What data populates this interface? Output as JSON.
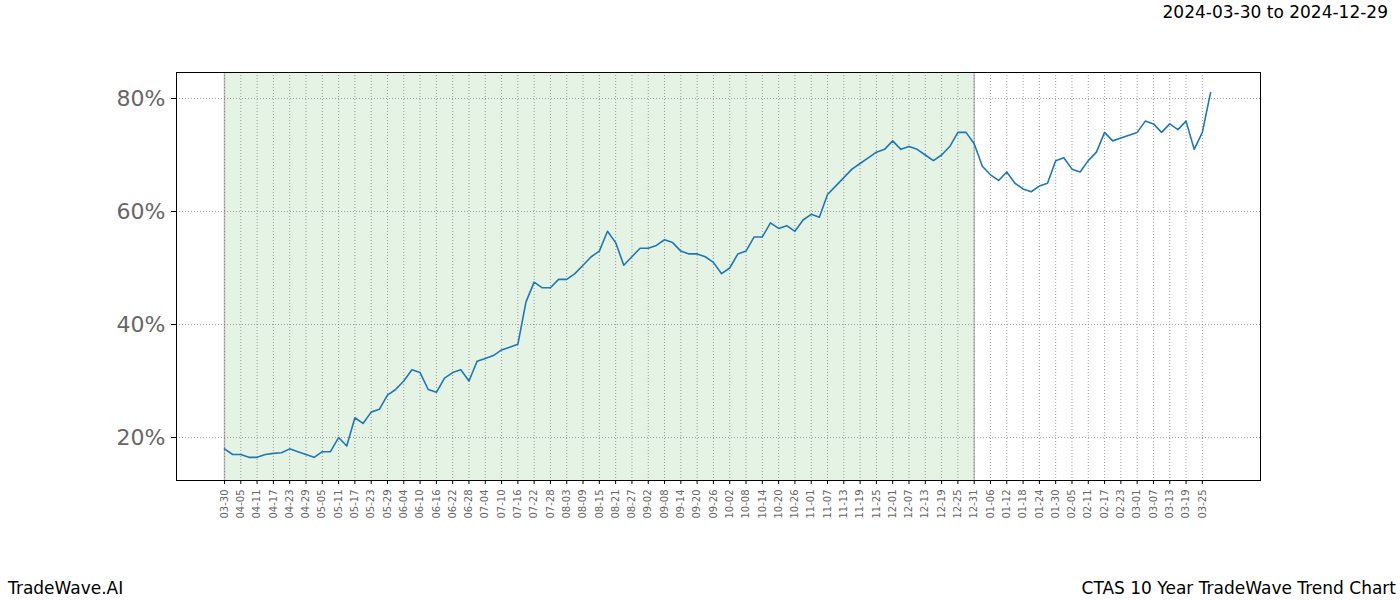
{
  "chart_data": {
    "type": "line",
    "subtitle": "2024-03-30 to 2024-12-29",
    "caption_left": "TradeWave.AI",
    "caption_right": "CTAS 10 Year TradeWave Trend Chart",
    "categories": [
      "03-30",
      null,
      "04-05",
      null,
      "04-11",
      null,
      "04-17",
      null,
      "04-23",
      null,
      "04-29",
      null,
      "05-05",
      null,
      "05-11",
      null,
      "05-17",
      null,
      "05-23",
      null,
      "05-29",
      null,
      "06-04",
      null,
      "06-10",
      null,
      "06-16",
      null,
      "06-22",
      null,
      "06-28",
      null,
      "07-04",
      null,
      "07-10",
      null,
      "07-16",
      null,
      "07-22",
      null,
      "07-28",
      null,
      "08-03",
      null,
      "08-09",
      null,
      "08-15",
      null,
      "08-21",
      null,
      "08-27",
      null,
      "09-02",
      null,
      "09-08",
      null,
      "09-14",
      null,
      "09-20",
      null,
      "09-26",
      null,
      "10-02",
      null,
      "10-08",
      null,
      "10-14",
      null,
      "10-20",
      null,
      "10-26",
      null,
      "11-01",
      null,
      "11-07",
      null,
      "11-13",
      null,
      "11-19",
      null,
      "11-25",
      null,
      "12-01",
      null,
      "12-07",
      null,
      "12-13",
      null,
      "12-19",
      null,
      "12-25",
      null,
      "12-31",
      null,
      "01-06",
      null,
      "01-12",
      null,
      "01-18",
      null,
      "01-24",
      null,
      "01-30",
      null,
      "02-05",
      null,
      "02-11",
      null,
      "02-17",
      null,
      "02-23",
      null,
      "03-01",
      null,
      "03-07",
      null,
      "03-13",
      null,
      "03-19",
      null,
      "03-25",
      null
    ],
    "values": [
      18,
      17,
      17,
      16.5,
      16.5,
      17,
      17.2,
      17.3,
      18,
      17.5,
      17,
      16.5,
      17.5,
      17.5,
      20,
      18.5,
      23.5,
      22.5,
      24.5,
      25,
      27.5,
      28.5,
      30,
      32,
      31.5,
      28.5,
      28,
      30.5,
      31.5,
      32,
      30,
      33.5,
      34,
      34.5,
      35.5,
      36,
      36.5,
      44,
      47.5,
      46.5,
      46.5,
      48,
      48,
      49,
      50.5,
      52,
      53,
      56.5,
      54.5,
      50.5,
      52,
      53.5,
      53.5,
      54,
      55,
      54.5,
      53,
      52.5,
      52.5,
      52,
      51,
      49,
      50,
      52.5,
      53,
      55.5,
      55.5,
      58,
      57,
      57.5,
      56.5,
      58.5,
      59.5,
      59,
      63,
      64.5,
      66,
      67.5,
      68.5,
      69.5,
      70.5,
      71,
      72.5,
      71,
      71.5,
      71,
      70,
      69,
      70,
      71.5,
      74,
      74,
      72,
      68,
      66.5,
      65.5,
      67,
      65,
      64,
      63.5,
      64.5,
      65,
      69,
      69.5,
      67.5,
      67,
      69,
      70.5,
      74,
      72.5,
      73,
      73.5,
      74,
      76,
      75.5,
      74,
      75.5,
      74.5,
      76,
      71,
      74,
      81
    ],
    "color": "#1f77b4",
    "highlight": {
      "from": "03-30",
      "to": "12-31"
    },
    "ylim": [
      12.4,
      84.6
    ],
    "yticks": [
      {
        "value": 20,
        "label": "20%"
      },
      {
        "value": 40,
        "label": "40%"
      },
      {
        "value": 60,
        "label": "60%"
      },
      {
        "value": 80,
        "label": "80%"
      }
    ],
    "grid": true
  }
}
